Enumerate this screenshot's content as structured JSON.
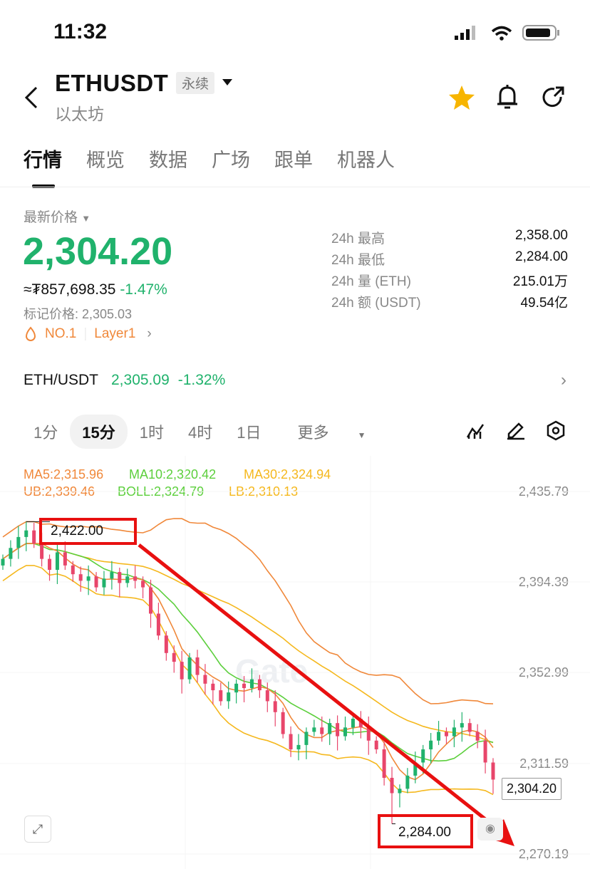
{
  "status": {
    "time": "11:32"
  },
  "header": {
    "symbol": "ETHUSDT",
    "tag": "永续",
    "name": "以太坊"
  },
  "tabs": [
    "行情",
    "概览",
    "数据",
    "广场",
    "跟单",
    "机器人"
  ],
  "price": {
    "label": "最新价格",
    "last": "2,304.20",
    "fiat": "≈₮857,698.35",
    "change": "-1.47%",
    "mark": "标记价格: 2,305.03",
    "rank": "NO.1",
    "category": "Layer1"
  },
  "stats": [
    {
      "label": "24h  最高",
      "value": "2,358.00"
    },
    {
      "label": "24h  最低",
      "value": "2,284.00"
    },
    {
      "label": "24h  量 (ETH)",
      "value": "215.01万"
    },
    {
      "label": "24h  额 (USDT)",
      "value": "49.54亿"
    }
  ],
  "spot": {
    "pair": "ETH/USDT",
    "price": "2,305.09",
    "change": "-1.32%"
  },
  "intervals": [
    "1分",
    "15分",
    "1时",
    "4时",
    "1日",
    "更多"
  ],
  "indicators": {
    "ma5": "MA5:2,315.96",
    "ma10": "MA10:2,320.42",
    "ma30": "MA30:2,324.94",
    "ub": "UB:2,339.46",
    "boll": "BOLL:2,324.79",
    "lb": "LB:2,310.13"
  },
  "colors": {
    "up": "#20b26c",
    "down": "#e8466b",
    "ma5": "#f0883a",
    "ma10": "#5ccf3c",
    "ma30": "#f5b81e",
    "annotation": "#e81010"
  },
  "watermark": "Gate",
  "chart_data": {
    "type": "candlestick",
    "y_ticks": [
      "2,435.79",
      "2,394.39",
      "2,352.99",
      "2,311.59",
      "2,270.19"
    ],
    "ylim": [
      2270.19,
      2435.79
    ],
    "high_label": "2,422.00",
    "low_label": "2,284.00",
    "current_label": "2,304.20",
    "high": 2422,
    "low": 2284,
    "closes": [
      2405,
      2410,
      2415,
      2418,
      2412,
      2405,
      2400,
      2408,
      2402,
      2398,
      2395,
      2397,
      2392,
      2396,
      2399,
      2394,
      2397,
      2395,
      2392,
      2380,
      2370,
      2362,
      2358,
      2350,
      2360,
      2352,
      2348,
      2345,
      2340,
      2344,
      2348,
      2346,
      2350,
      2345,
      2340,
      2335,
      2325,
      2318,
      2320,
      2326,
      2328,
      2325,
      2330,
      2324,
      2328,
      2332,
      2328,
      2322,
      2318,
      2305,
      2298,
      2300,
      2306,
      2312,
      2318,
      2322,
      2326,
      2324,
      2328,
      2330,
      2326,
      2322,
      2312,
      2304.2
    ]
  }
}
